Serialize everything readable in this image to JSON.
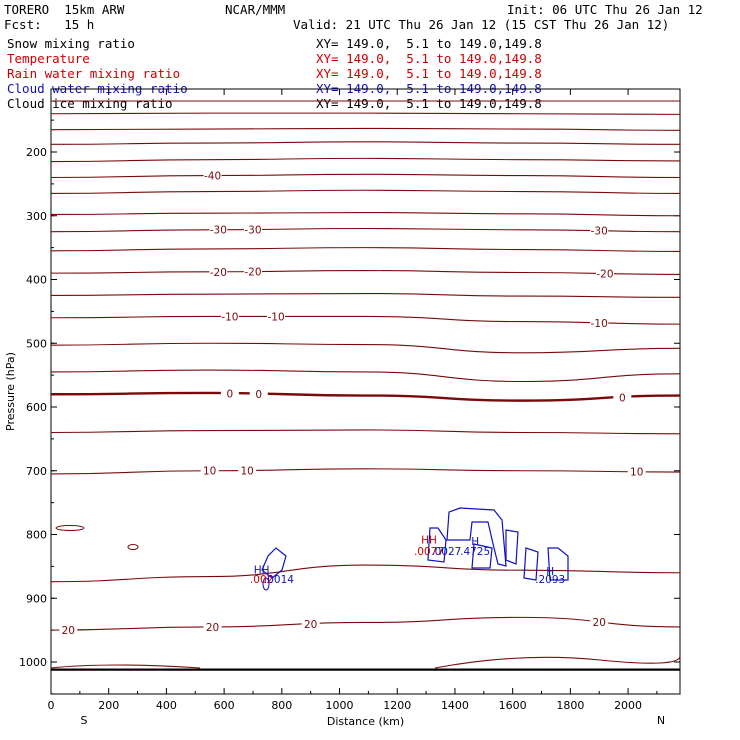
{
  "header": {
    "model": "TORERO  15km ARW",
    "center": "NCAR/MMM",
    "init": "Init: 06 UTC Thu 26 Jan 12",
    "fcst": "Fcst:   15 h",
    "valid": "Valid: 21 UTC Thu 26 Jan 12 (15 CST Thu 26 Jan 12)"
  },
  "legend": [
    {
      "label": "Snow mixing ratio",
      "color": "#000000",
      "range": "XY= 149.0,  5.1 to 149.0,149.8"
    },
    {
      "label": "Temperature",
      "color": "#cc0000",
      "range": "XY= 149.0,  5.1 to 149.0,149.8"
    },
    {
      "label": "Rain water mixing ratio",
      "color": "#cc0000",
      "range": "XY= 149.0,  5.1 to 149.0,149.8"
    },
    {
      "label": "Cloud water mixing ratio",
      "color": "#1010c0",
      "range": "XY= 149.0,  5.1 to 149.0,149.8"
    },
    {
      "label": "Cloud ice mixing ratio",
      "color": "#000000",
      "range": "XY= 149.0,  5.1 to 149.0,149.8"
    }
  ],
  "colors": {
    "temperature": "#7a0a0a",
    "cloud": "#1010c0",
    "rain": "#cc0000",
    "axis": "#000000"
  },
  "chart_data": {
    "type": "contour-cross-section",
    "xlabel": "Distance (km)",
    "ylabel": "Pressure (hPa)",
    "xlim": [
      0,
      2180
    ],
    "ylim": [
      1050,
      100
    ],
    "x_ticks": [
      0,
      200,
      400,
      600,
      800,
      1000,
      1200,
      1400,
      1600,
      1800,
      2000
    ],
    "y_ticks": [
      200,
      300,
      400,
      500,
      600,
      700,
      800,
      900,
      1000
    ],
    "left_end": "S",
    "right_end": "N",
    "temperature_contours": [
      {
        "p": [
          120,
          120,
          120,
          120,
          120
        ]
      },
      {
        "p": [
          140,
          139,
          139,
          140,
          141
        ]
      },
      {
        "p": [
          165,
          164,
          163,
          164,
          166
        ]
      },
      {
        "p": [
          188,
          186,
          184,
          186,
          188
        ]
      },
      {
        "p": [
          215,
          212,
          210,
          212,
          214
        ]
      },
      {
        "p": [
          240,
          237,
          235,
          237,
          240
        ],
        "value": "-40",
        "label_x": [
          560
        ]
      },
      {
        "p": [
          265,
          262,
          260,
          262,
          265
        ]
      },
      {
        "p": [
          298,
          296,
          295,
          297,
          300
        ]
      },
      {
        "p": [
          325,
          322,
          320,
          322,
          325
        ],
        "value": "-30",
        "label_x": [
          580,
          700,
          1900
        ]
      },
      {
        "p": [
          355,
          352,
          350,
          353,
          356
        ]
      },
      {
        "p": [
          390,
          388,
          386,
          389,
          392
        ],
        "value": "-20",
        "label_x": [
          580,
          700,
          1920
        ]
      },
      {
        "p": [
          425,
          423,
          422,
          426,
          428
        ]
      },
      {
        "p": [
          460,
          458,
          458,
          466,
          470
        ],
        "value": "-10",
        "label_x": [
          620,
          780,
          1900
        ]
      },
      {
        "p": [
          503,
          500,
          502,
          515,
          508
        ]
      },
      {
        "p": [
          545,
          542,
          545,
          560,
          548
        ]
      },
      {
        "p": [
          580,
          578,
          582,
          590,
          582
        ],
        "value": "0",
        "label_x": [
          620,
          720,
          1980
        ],
        "bold": true
      },
      {
        "p": [
          640,
          637,
          636,
          640,
          642
        ]
      },
      {
        "p": [
          705,
          700,
          697,
          700,
          702
        ],
        "value": "10",
        "label_x": [
          550,
          680,
          2030
        ]
      },
      {
        "p": [
          874,
          866,
          848,
          856,
          860
        ]
      },
      {
        "p": [
          950,
          945,
          938,
          930,
          945
        ],
        "value": "20",
        "label_x": [
          60,
          560,
          900,
          1900
        ]
      }
    ],
    "cloud_extremes": [
      {
        "label": "HH",
        "x": 730,
        "p": 855
      },
      {
        "label": "HH",
        "x": 1310,
        "p": 808
      },
      {
        "label": "H",
        "x": 1470,
        "p": 810
      },
      {
        "label": "H",
        "x": 1730,
        "p": 857
      }
    ],
    "max_values": [
      {
        "text": ".002",
        "x": 730,
        "p": 870
      },
      {
        "text": ".0014",
        "x": 790,
        "p": 870
      },
      {
        "text": ".0077",
        "x": 1310,
        "p": 826
      },
      {
        "text": ".0027",
        "x": 1370,
        "p": 826
      },
      {
        "text": ".4725",
        "x": 1470,
        "p": 826
      },
      {
        "text": ".2093",
        "x": 1730,
        "p": 870
      }
    ]
  }
}
